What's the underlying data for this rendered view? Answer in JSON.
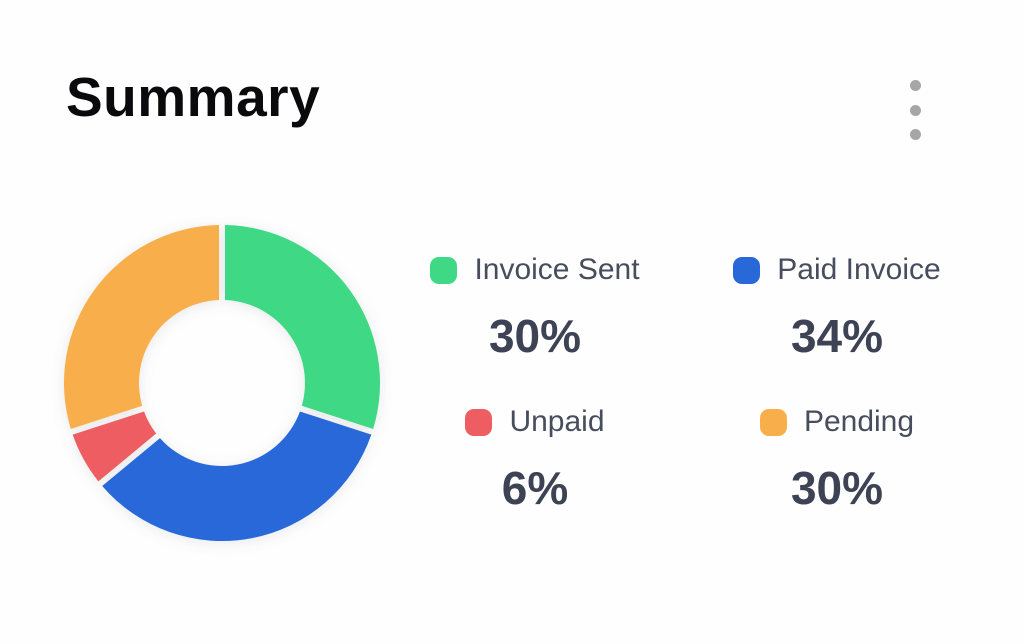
{
  "header": {
    "title": "Summary",
    "menu_icon": "kebab-menu-icon"
  },
  "chart_data": {
    "type": "pie",
    "subtype": "donut",
    "title": "Summary",
    "unit": "%",
    "legend_position": "right",
    "start_angle_deg": 0,
    "clockwise": true,
    "categories": [
      "Invoice Sent",
      "Paid Invoice",
      "Unpaid",
      "Pending"
    ],
    "values": [
      30,
      34,
      6,
      30
    ],
    "series": [
      {
        "name": "Invoice Sent",
        "value": 30,
        "display": "30%",
        "color": "#3fd884"
      },
      {
        "name": "Paid Invoice",
        "value": 34,
        "display": "34%",
        "color": "#2868d8"
      },
      {
        "name": "Unpaid",
        "value": 6,
        "display": "6%",
        "color": "#ee5d61"
      },
      {
        "name": "Pending",
        "value": 30,
        "display": "30%",
        "color": "#f8af4b"
      }
    ]
  },
  "ui_colors": {
    "background": "#fefefe",
    "title_text": "#0a0a0c",
    "label_text": "#474d5d",
    "value_text": "#3d4254",
    "menu_dots": "#a6a6a6"
  }
}
